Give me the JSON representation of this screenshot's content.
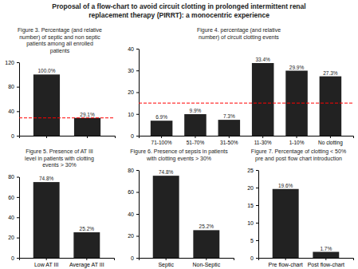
{
  "title": "Proposal of a flow-chart to avoid circuit clotting in prolonged intermittent renal\nreplacement therapy (PIRRT): a monocentric experience",
  "chart_data": [
    {
      "type": "bar",
      "title": "Figure 3. Percentage (and relative\nnumber) of septic and non septic\npatients among all enrolled\npatients",
      "categories": [
        null,
        null
      ],
      "values": [
        100,
        29.1
      ],
      "value_labels": [
        "100.0%",
        "29.1%"
      ],
      "data_labels": true,
      "color": "#222222",
      "ylim": [
        0,
        120
      ],
      "yticks": [
        0,
        40,
        80,
        120
      ],
      "annotations": [
        {
          "type": "hline",
          "value": 29.1,
          "color": "red",
          "line_style": "dashed"
        }
      ]
    },
    {
      "type": "bar",
      "title": "Figure 4. percentage (and relative\nnumber) of circuit clotting events",
      "categories": [
        "71-100%",
        "51-70%",
        "31-50%",
        "11-30%",
        "1-10%",
        "No clotting"
      ],
      "values": [
        6.9,
        9.9,
        7.3,
        33.4,
        29.9,
        27.3
      ],
      "value_labels": [
        "6.9%",
        "9.9%",
        "7.3%",
        "33.4%",
        "29.9%",
        "27.3%"
      ],
      "data_labels": true,
      "color": "#222222",
      "ylim": [
        0,
        40
      ],
      "yticks": [
        0,
        10,
        20,
        30,
        40
      ],
      "annotations": [
        {
          "type": "hline",
          "value": 15,
          "color": "red",
          "line_style": "dashed"
        }
      ]
    },
    {
      "type": "bar",
      "title": "Figure 5. Presence of AT III\nlevel in patients with clotting\nevents > 30%",
      "categories": [
        "Low AT III",
        "Average AT III"
      ],
      "values": [
        74.8,
        25.2
      ],
      "value_labels": [
        "74.8%",
        "25.2%"
      ],
      "data_labels": true,
      "color": "#222222",
      "ylim": [
        0,
        80
      ],
      "yticks": [
        0,
        20,
        40,
        60,
        80
      ]
    },
    {
      "type": "bar",
      "title": "Figure 6. Presence of sepsis in patients\nwith clotting events > 30%",
      "categories": [
        "Septic",
        "Non-Septic"
      ],
      "values": [
        74.8,
        25.2
      ],
      "value_labels": [
        "74.8%",
        "25.2%"
      ],
      "data_labels": true,
      "color": "#222222",
      "ylim": [
        0,
        80
      ],
      "yticks": [
        0,
        20,
        40,
        60,
        80
      ]
    },
    {
      "type": "bar",
      "title": "Figure 7. Percentage of clotting < 50%\npre and post flow chart introduction",
      "categories": [
        "Pre flow-chart",
        "Post flow-chart"
      ],
      "values": [
        19.6,
        1.7
      ],
      "value_labels": [
        "19.6%",
        "1.7%"
      ],
      "data_labels": true,
      "color": "#222222",
      "ylim": [
        0,
        25
      ],
      "yticks": [
        0,
        5,
        10,
        15,
        20,
        25
      ]
    }
  ]
}
